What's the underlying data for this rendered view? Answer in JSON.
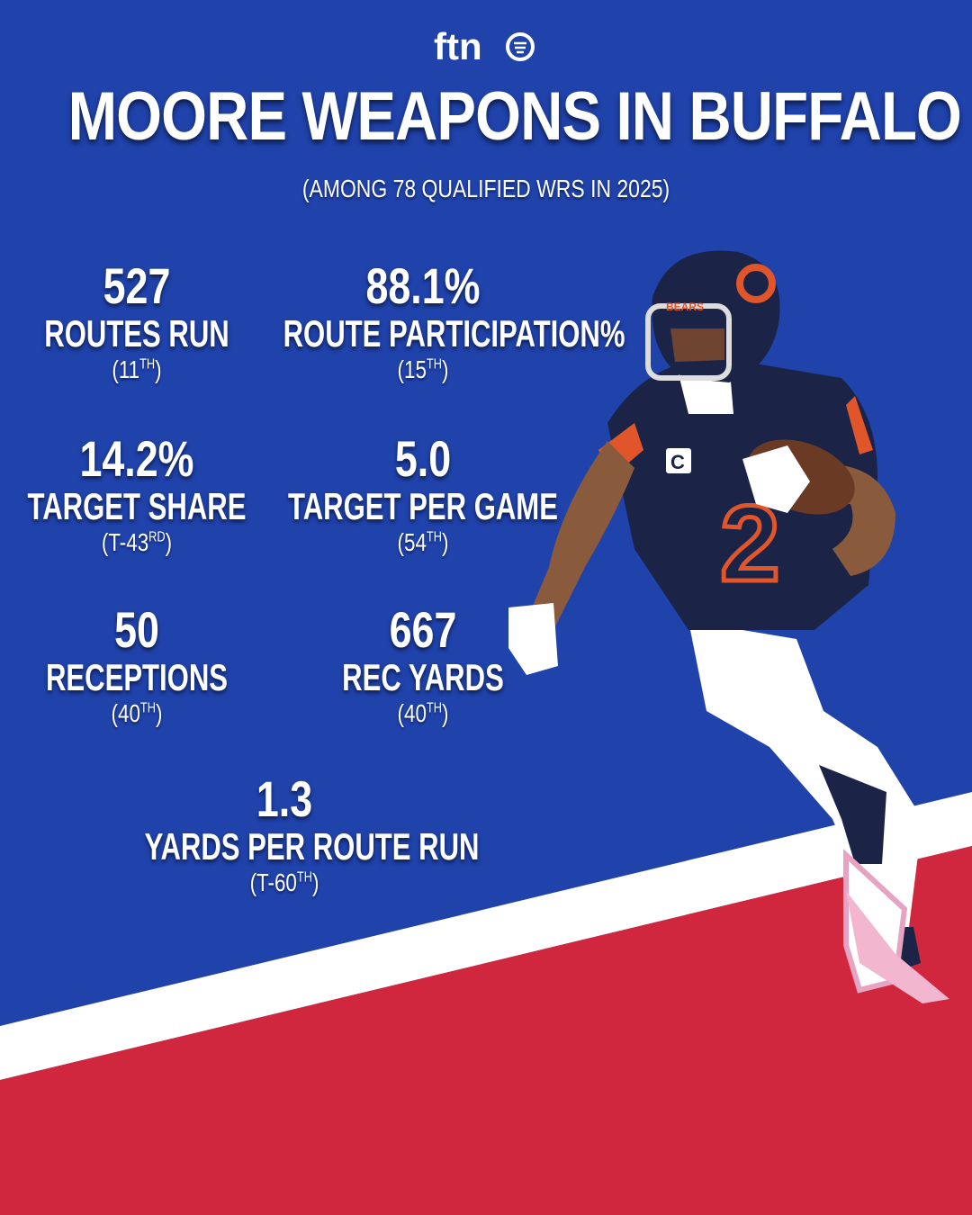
{
  "brand": {
    "logo_text": "ftn"
  },
  "header": {
    "title": "MOORE WEAPONS IN BUFFALO",
    "subtitle": "(AMONG 78 QUALIFIED WRS IN 2025)"
  },
  "stats": [
    {
      "value": "527",
      "label": "ROUTES RUN",
      "rank_prefix": "(11",
      "rank_suffix": "TH",
      "rank_close": ")"
    },
    {
      "value": "88.1%",
      "label": "ROUTE PARTICIPATION%",
      "rank_prefix": "(15",
      "rank_suffix": "TH",
      "rank_close": ")"
    },
    {
      "value": "14.2%",
      "label": "TARGET SHARE",
      "rank_prefix": "(T-43",
      "rank_suffix": "RD",
      "rank_close": ")"
    },
    {
      "value": "5.0",
      "label": "TARGET PER GAME",
      "rank_prefix": "(54",
      "rank_suffix": "TH",
      "rank_close": ")"
    },
    {
      "value": "50",
      "label": "RECEPTIONS",
      "rank_prefix": "(40",
      "rank_suffix": "TH",
      "rank_close": ")"
    },
    {
      "value": "667",
      "label": "REC YARDS",
      "rank_prefix": "(40",
      "rank_suffix": "TH",
      "rank_close": ")"
    },
    {
      "value": "1.3",
      "label": "YARDS PER ROUTE RUN",
      "rank_prefix": "(T-60",
      "rank_suffix": "TH",
      "rank_close": ")"
    }
  ],
  "player": {
    "jersey_number": "2",
    "helmet_logo": "C",
    "captain_patch": "C",
    "team_text": "BEARS"
  },
  "colors": {
    "background": "#1f42ab",
    "stripe": "#ffffff",
    "field_red": "#d0263e",
    "jersey": "#1b2347",
    "accent": "#e0562a"
  }
}
